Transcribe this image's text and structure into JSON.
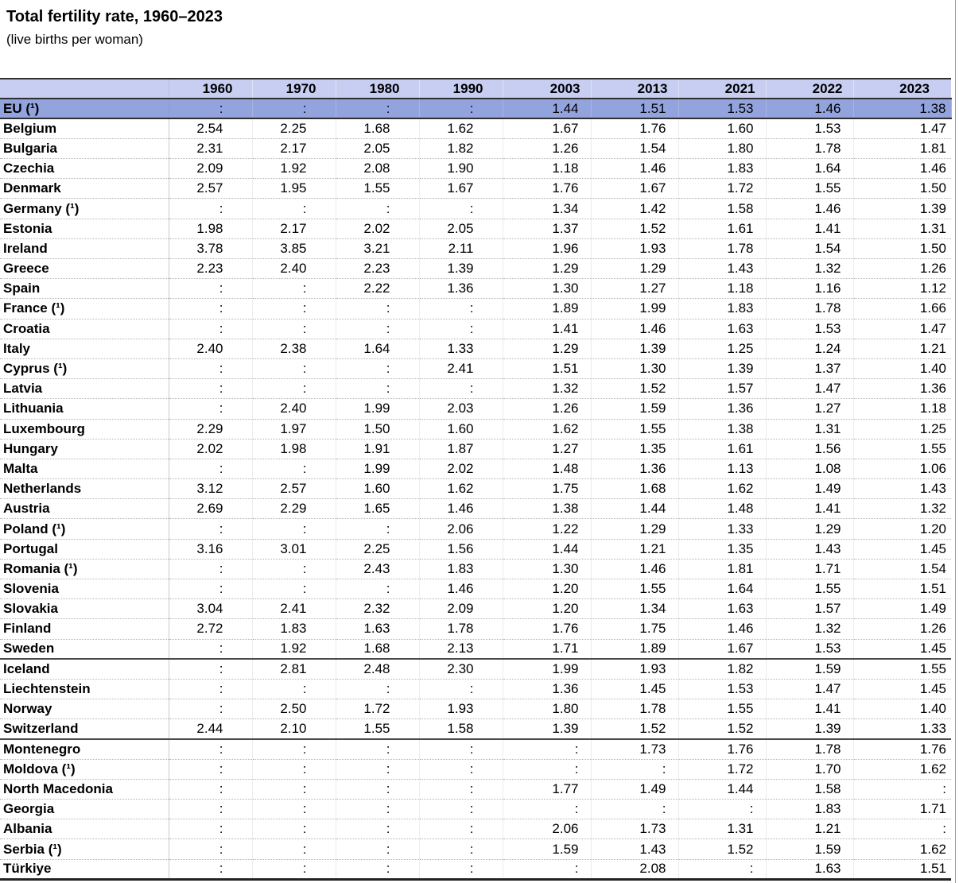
{
  "page": {
    "title": "Total fertility rate, 1960–2023",
    "subtitle": "(live births per woman)"
  },
  "colors": {
    "header_bg": "#c7cef2",
    "eu_row_bg": "#93a3de",
    "dark_border": "#2f2f2f",
    "row_separator": "#b3b3b3",
    "page_edge_line": "#9a9a9a",
    "text": "#000000"
  },
  "chart_data": {
    "type": "table",
    "title": "Total fertility rate, 1960–2023",
    "subtitle": "(live births per woman)",
    "unit": "live births per woman",
    "missing_symbol": ":",
    "columns": [
      "1960",
      "1970",
      "1980",
      "1990",
      "2003",
      "2013",
      "2021",
      "2022",
      "2023"
    ],
    "rows": [
      {
        "name": "EU (¹)",
        "highlight": true,
        "values": [
          ":",
          ":",
          ":",
          ":",
          "1.44",
          "1.51",
          "1.53",
          "1.46",
          "1.38"
        ]
      },
      {
        "name": "Belgium",
        "values": [
          "2.54",
          "2.25",
          "1.68",
          "1.62",
          "1.67",
          "1.76",
          "1.60",
          "1.53",
          "1.47"
        ]
      },
      {
        "name": "Bulgaria",
        "values": [
          "2.31",
          "2.17",
          "2.05",
          "1.82",
          "1.26",
          "1.54",
          "1.80",
          "1.78",
          "1.81"
        ]
      },
      {
        "name": "Czechia",
        "values": [
          "2.09",
          "1.92",
          "2.08",
          "1.90",
          "1.18",
          "1.46",
          "1.83",
          "1.64",
          "1.46"
        ]
      },
      {
        "name": "Denmark",
        "values": [
          "2.57",
          "1.95",
          "1.55",
          "1.67",
          "1.76",
          "1.67",
          "1.72",
          "1.55",
          "1.50"
        ]
      },
      {
        "name": "Germany (¹)",
        "values": [
          ":",
          ":",
          ":",
          ":",
          "1.34",
          "1.42",
          "1.58",
          "1.46",
          "1.39"
        ]
      },
      {
        "name": "Estonia",
        "values": [
          "1.98",
          "2.17",
          "2.02",
          "2.05",
          "1.37",
          "1.52",
          "1.61",
          "1.41",
          "1.31"
        ]
      },
      {
        "name": "Ireland",
        "values": [
          "3.78",
          "3.85",
          "3.21",
          "2.11",
          "1.96",
          "1.93",
          "1.78",
          "1.54",
          "1.50"
        ]
      },
      {
        "name": "Greece",
        "values": [
          "2.23",
          "2.40",
          "2.23",
          "1.39",
          "1.29",
          "1.29",
          "1.43",
          "1.32",
          "1.26"
        ]
      },
      {
        "name": "Spain",
        "values": [
          ":",
          ":",
          "2.22",
          "1.36",
          "1.30",
          "1.27",
          "1.18",
          "1.16",
          "1.12"
        ]
      },
      {
        "name": "France (¹)",
        "values": [
          ":",
          ":",
          ":",
          ":",
          "1.89",
          "1.99",
          "1.83",
          "1.78",
          "1.66"
        ]
      },
      {
        "name": "Croatia",
        "values": [
          ":",
          ":",
          ":",
          ":",
          "1.41",
          "1.46",
          "1.63",
          "1.53",
          "1.47"
        ]
      },
      {
        "name": "Italy",
        "values": [
          "2.40",
          "2.38",
          "1.64",
          "1.33",
          "1.29",
          "1.39",
          "1.25",
          "1.24",
          "1.21"
        ]
      },
      {
        "name": "Cyprus (¹)",
        "values": [
          ":",
          ":",
          ":",
          "2.41",
          "1.51",
          "1.30",
          "1.39",
          "1.37",
          "1.40"
        ]
      },
      {
        "name": "Latvia",
        "values": [
          ":",
          ":",
          ":",
          ":",
          "1.32",
          "1.52",
          "1.57",
          "1.47",
          "1.36"
        ]
      },
      {
        "name": "Lithuania",
        "values": [
          ":",
          "2.40",
          "1.99",
          "2.03",
          "1.26",
          "1.59",
          "1.36",
          "1.27",
          "1.18"
        ]
      },
      {
        "name": "Luxembourg",
        "values": [
          "2.29",
          "1.97",
          "1.50",
          "1.60",
          "1.62",
          "1.55",
          "1.38",
          "1.31",
          "1.25"
        ]
      },
      {
        "name": "Hungary",
        "values": [
          "2.02",
          "1.98",
          "1.91",
          "1.87",
          "1.27",
          "1.35",
          "1.61",
          "1.56",
          "1.55"
        ]
      },
      {
        "name": "Malta",
        "values": [
          ":",
          ":",
          "1.99",
          "2.02",
          "1.48",
          "1.36",
          "1.13",
          "1.08",
          "1.06"
        ]
      },
      {
        "name": "Netherlands",
        "values": [
          "3.12",
          "2.57",
          "1.60",
          "1.62",
          "1.75",
          "1.68",
          "1.62",
          "1.49",
          "1.43"
        ]
      },
      {
        "name": "Austria",
        "values": [
          "2.69",
          "2.29",
          "1.65",
          "1.46",
          "1.38",
          "1.44",
          "1.48",
          "1.41",
          "1.32"
        ]
      },
      {
        "name": "Poland (¹)",
        "values": [
          ":",
          ":",
          ":",
          "2.06",
          "1.22",
          "1.29",
          "1.33",
          "1.29",
          "1.20"
        ]
      },
      {
        "name": "Portugal",
        "values": [
          "3.16",
          "3.01",
          "2.25",
          "1.56",
          "1.44",
          "1.21",
          "1.35",
          "1.43",
          "1.45"
        ]
      },
      {
        "name": "Romania (¹)",
        "values": [
          ":",
          ":",
          "2.43",
          "1.83",
          "1.30",
          "1.46",
          "1.81",
          "1.71",
          "1.54"
        ]
      },
      {
        "name": "Slovenia",
        "values": [
          ":",
          ":",
          ":",
          "1.46",
          "1.20",
          "1.55",
          "1.64",
          "1.55",
          "1.51"
        ]
      },
      {
        "name": "Slovakia",
        "values": [
          "3.04",
          "2.41",
          "2.32",
          "2.09",
          "1.20",
          "1.34",
          "1.63",
          "1.57",
          "1.49"
        ]
      },
      {
        "name": "Finland",
        "values": [
          "2.72",
          "1.83",
          "1.63",
          "1.78",
          "1.76",
          "1.75",
          "1.46",
          "1.32",
          "1.26"
        ]
      },
      {
        "name": "Sweden",
        "group_end": true,
        "values": [
          ":",
          "1.92",
          "1.68",
          "2.13",
          "1.71",
          "1.89",
          "1.67",
          "1.53",
          "1.45"
        ]
      },
      {
        "name": "Iceland",
        "values": [
          ":",
          "2.81",
          "2.48",
          "2.30",
          "1.99",
          "1.93",
          "1.82",
          "1.59",
          "1.55"
        ]
      },
      {
        "name": "Liechtenstein",
        "values": [
          ":",
          ":",
          ":",
          ":",
          "1.36",
          "1.45",
          "1.53",
          "1.47",
          "1.45"
        ]
      },
      {
        "name": "Norway",
        "values": [
          ":",
          "2.50",
          "1.72",
          "1.93",
          "1.80",
          "1.78",
          "1.55",
          "1.41",
          "1.40"
        ]
      },
      {
        "name": "Switzerland",
        "group_end": true,
        "values": [
          "2.44",
          "2.10",
          "1.55",
          "1.58",
          "1.39",
          "1.52",
          "1.52",
          "1.39",
          "1.33"
        ]
      },
      {
        "name": "Montenegro",
        "values": [
          ":",
          ":",
          ":",
          ":",
          ":",
          "1.73",
          "1.76",
          "1.78",
          "1.76"
        ]
      },
      {
        "name": "Moldova (¹)",
        "values": [
          ":",
          ":",
          ":",
          ":",
          ":",
          ":",
          "1.72",
          "1.70",
          "1.62"
        ]
      },
      {
        "name": "North Macedonia",
        "values": [
          ":",
          ":",
          ":",
          ":",
          "1.77",
          "1.49",
          "1.44",
          "1.58",
          ":"
        ]
      },
      {
        "name": "Georgia",
        "values": [
          ":",
          ":",
          ":",
          ":",
          ":",
          ":",
          ":",
          "1.83",
          "1.71"
        ]
      },
      {
        "name": "Albania",
        "values": [
          ":",
          ":",
          ":",
          ":",
          "2.06",
          "1.73",
          "1.31",
          "1.21",
          ":"
        ]
      },
      {
        "name": "Serbia (¹)",
        "values": [
          ":",
          ":",
          ":",
          ":",
          "1.59",
          "1.43",
          "1.52",
          "1.59",
          "1.62"
        ]
      },
      {
        "name": "Türkiye",
        "last": true,
        "values": [
          ":",
          ":",
          ":",
          ":",
          ":",
          "2.08",
          ":",
          "1.63",
          "1.51"
        ]
      }
    ]
  }
}
